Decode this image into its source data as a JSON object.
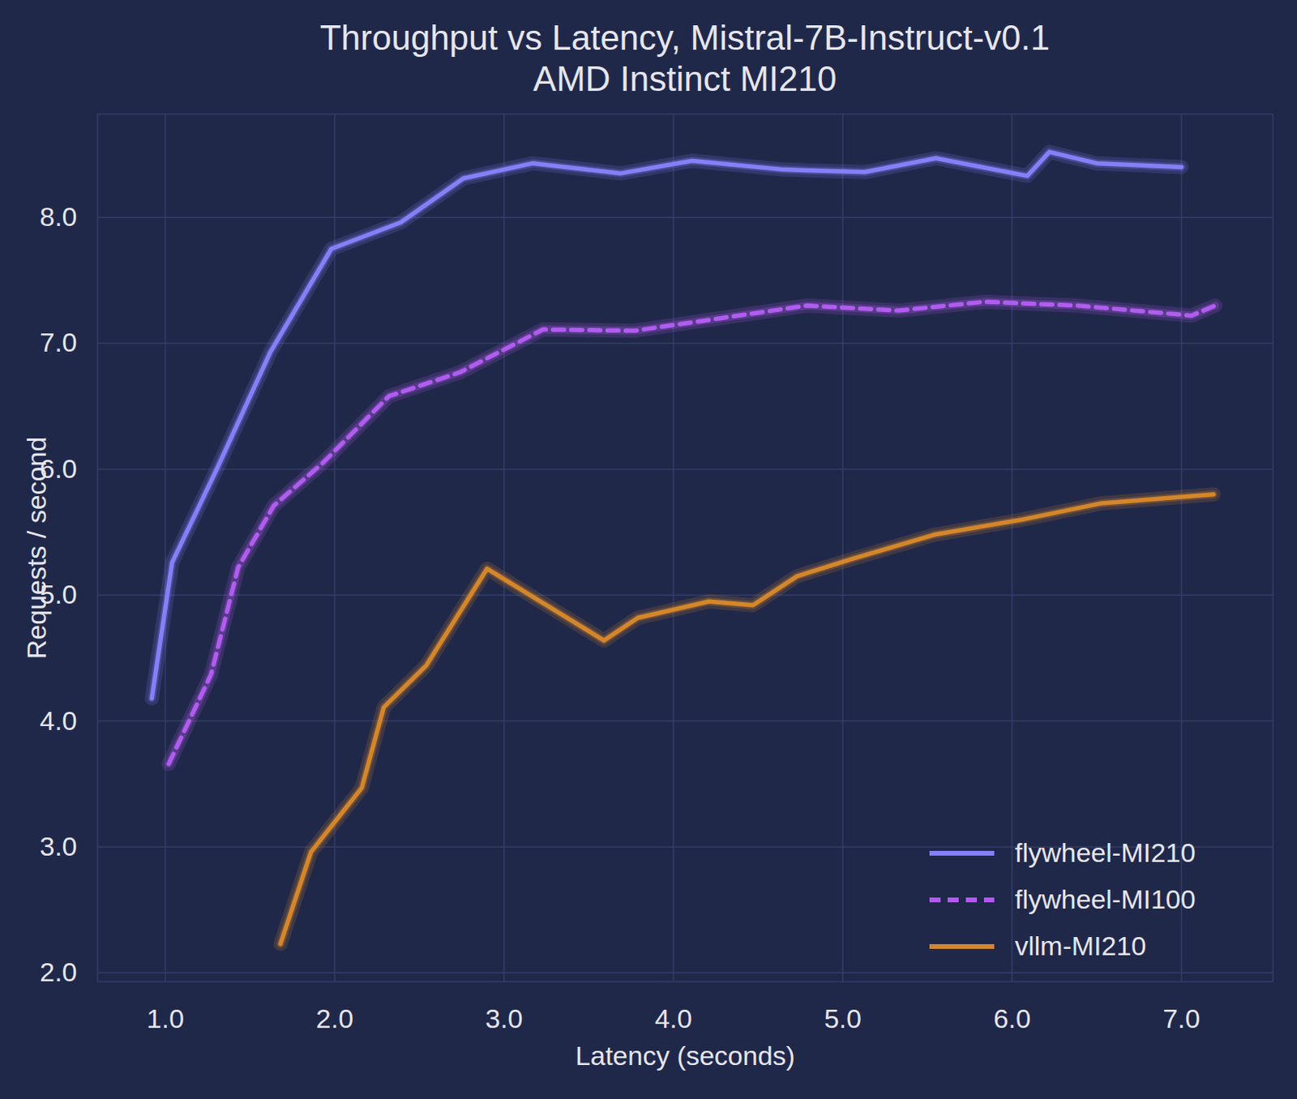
{
  "chart_data": {
    "type": "line",
    "title": "Throughput vs Latency, Mistral-7B-Instruct-v0.1",
    "subtitle": "AMD Instinct MI210",
    "x_label": "Latency (seconds)",
    "y_label": "Requests / second",
    "xlim": [
      0.6,
      7.54
    ],
    "ylim": [
      1.93,
      8.82
    ],
    "xticks": [
      1,
      2,
      3,
      4,
      5,
      6,
      7
    ],
    "yticks": [
      2,
      3,
      4,
      5,
      6,
      7,
      8
    ],
    "grid": true,
    "legend": "lower right",
    "series": [
      {
        "name": "flywheel-MI210",
        "color": "#8480f8",
        "line_style": "solid",
        "x": [
          0.92,
          1.04,
          1.3,
          1.62,
          1.98,
          2.39,
          2.76,
          3.17,
          3.69,
          4.11,
          4.65,
          5.13,
          5.55,
          6.09,
          6.22,
          6.5,
          7.0
        ],
        "values": [
          4.18,
          5.26,
          5.99,
          6.93,
          7.75,
          7.96,
          8.31,
          8.43,
          8.35,
          8.45,
          8.38,
          8.36,
          8.47,
          8.33,
          8.52,
          8.43,
          8.4
        ]
      },
      {
        "name": "flywheel-MI100",
        "color": "#b15cf0",
        "line_style": "dashed",
        "x": [
          1.02,
          1.27,
          1.43,
          1.64,
          1.93,
          2.32,
          2.74,
          3.23,
          3.77,
          4.28,
          4.79,
          5.33,
          5.84,
          6.38,
          7.06,
          7.2
        ],
        "values": [
          3.66,
          4.37,
          5.22,
          5.71,
          6.05,
          6.58,
          6.77,
          7.11,
          7.1,
          7.2,
          7.3,
          7.26,
          7.33,
          7.3,
          7.22,
          7.3
        ]
      },
      {
        "name": "vllm-MI210",
        "color": "#d4862a",
        "line_style": "solid",
        "x": [
          1.68,
          1.86,
          2.16,
          2.29,
          2.54,
          2.9,
          3.59,
          3.79,
          4.21,
          4.47,
          4.73,
          5.06,
          5.54,
          6.06,
          6.53,
          7.19
        ],
        "values": [
          2.23,
          2.96,
          3.47,
          4.11,
          4.44,
          5.21,
          4.64,
          4.82,
          4.95,
          4.92,
          5.15,
          5.29,
          5.48,
          5.6,
          5.73,
          5.8
        ]
      }
    ]
  }
}
